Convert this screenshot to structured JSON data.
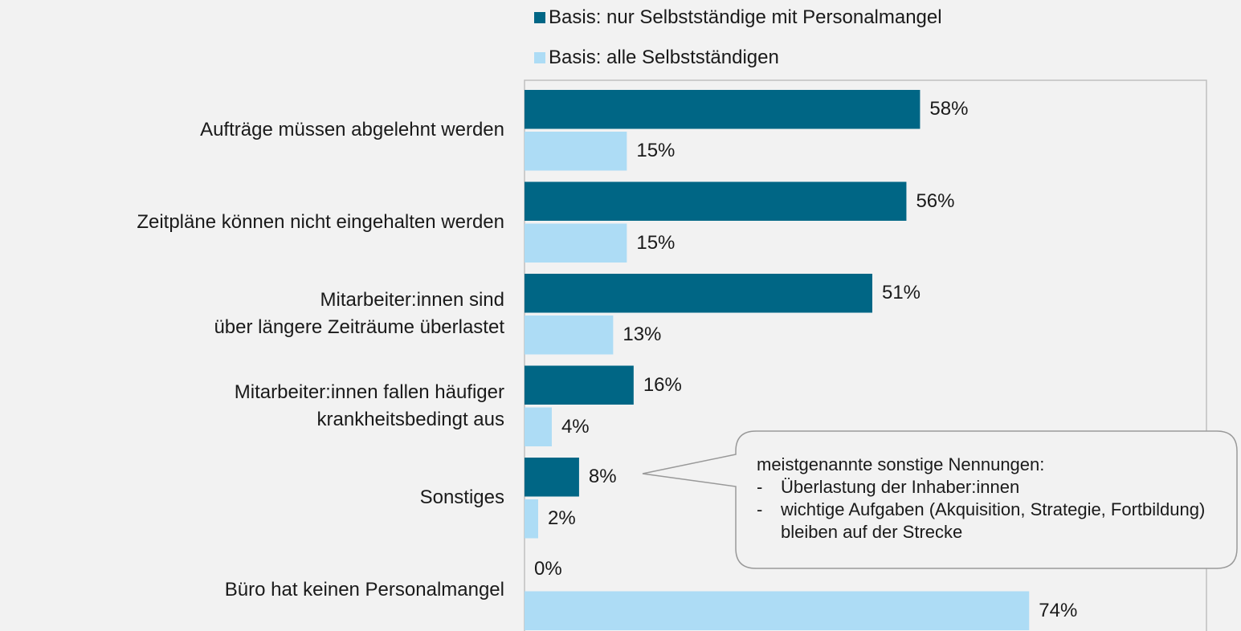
{
  "chart_data": {
    "type": "bar",
    "orientation": "horizontal",
    "categories": [
      "Aufträge müssen abgelehnt werden",
      "Zeitpläne können nicht eingehalten werden",
      "Mitarbeiter:innen sind\nüber längere Zeiträume überlastet",
      "Mitarbeiter:innen fallen häufiger\nkrankheitsbedingt aus",
      "Sonstiges",
      "Büro hat keinen Personalmangel"
    ],
    "series": [
      {
        "name": "Basis: nur Selbstständige mit Personalmangel",
        "color": "#006685",
        "values": [
          58,
          56,
          51,
          16,
          8,
          0
        ],
        "value_labels": [
          "58%",
          "56%",
          "51%",
          "16%",
          "8%",
          "0%"
        ]
      },
      {
        "name": "Basis: alle Selbstständigen",
        "color": "#addcf5",
        "values": [
          15,
          15,
          13,
          4,
          2,
          74
        ],
        "value_labels": [
          "15%",
          "15%",
          "13%",
          "4%",
          "2%",
          "74%"
        ]
      }
    ],
    "xlim": [
      0,
      100
    ],
    "annotation": {
      "title": "meistgenannte sonstige Nennungen:",
      "items": [
        "Überlastung der Inhaber:innen",
        "wichtige Aufgaben (Akquisition, Strategie, Fortbildung) bleiben auf der Strecke"
      ]
    }
  }
}
